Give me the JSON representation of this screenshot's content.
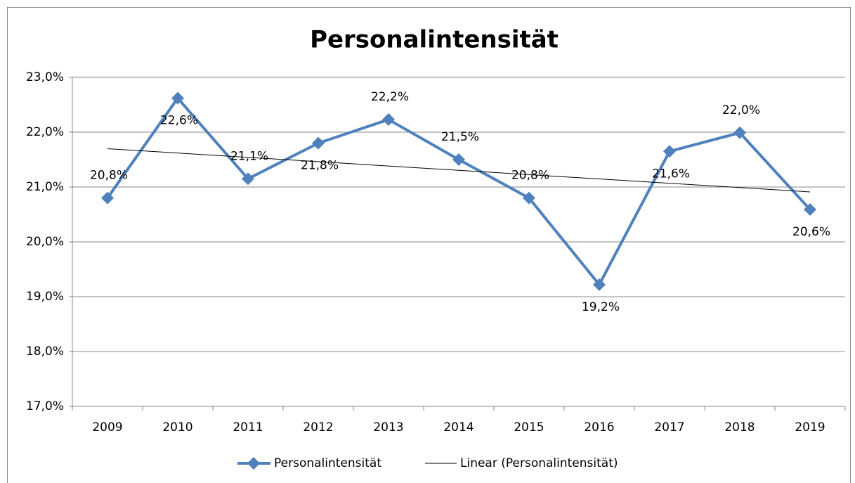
{
  "chart_data": {
    "type": "line",
    "title": "Personalintensität",
    "categories": [
      "2009",
      "2010",
      "2011",
      "2012",
      "2013",
      "2014",
      "2015",
      "2016",
      "2017",
      "2018",
      "2019"
    ],
    "series": [
      {
        "name": "Personalintensität",
        "color": "#4f81bd",
        "values": [
          20.8,
          22.62,
          21.15,
          21.8,
          22.23,
          21.5,
          20.8,
          19.22,
          21.65,
          21.99,
          20.59
        ],
        "value_labels": [
          "20,8%",
          "22,6%",
          "21,1%",
          "21,8%",
          "22,2%",
          "21,5%",
          "20,8%",
          "19,2%",
          "21,6%",
          "22,0%",
          "20,6%"
        ]
      }
    ],
    "trendline": {
      "name": "Linear (Personalintensität)",
      "kind": "linear",
      "color": "#000000"
    },
    "ylim": [
      17,
      23
    ],
    "yticks": [
      {
        "value": 17,
        "label": "17,0%"
      },
      {
        "value": 18,
        "label": "18,0%"
      },
      {
        "value": 19,
        "label": "19,0%"
      },
      {
        "value": 20,
        "label": "20,0%"
      },
      {
        "value": 21,
        "label": "21,0%"
      },
      {
        "value": 22,
        "label": "22,0%"
      },
      {
        "value": 23,
        "label": "23,0%"
      }
    ],
    "grid": true,
    "legend": "bottom"
  }
}
